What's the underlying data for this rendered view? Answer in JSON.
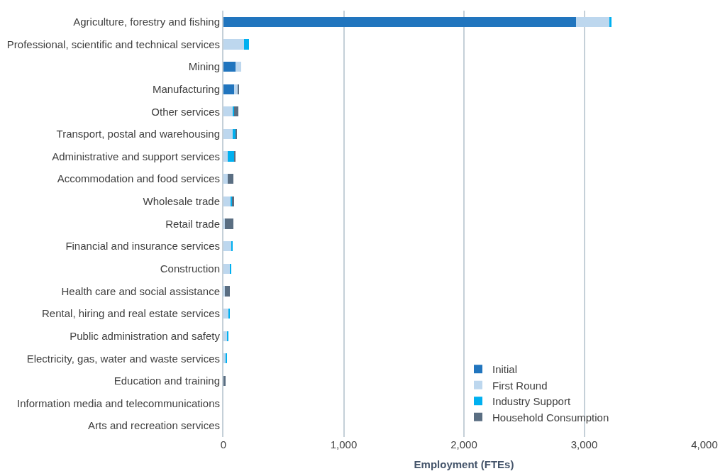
{
  "chart_data": {
    "type": "bar",
    "orientation": "horizontal",
    "stacked": true,
    "xlabel": "Employment (FTEs)",
    "categories": [
      "Agriculture, forestry and fishing",
      "Professional, scientific and technical services",
      "Mining",
      "Manufacturing",
      "Other services",
      "Transport, postal and warehousing",
      "Administrative and support services",
      "Accommodation and food services",
      "Wholesale trade",
      "Retail trade",
      "Financial and insurance services",
      "Construction",
      "Health care and social assistance",
      "Rental, hiring and real estate services",
      "Public administration and safety",
      "Electricity, gas, water and waste services",
      "Education and training",
      "Information media and telecommunications",
      "Arts and recreation services"
    ],
    "series": [
      {
        "name": "Initial",
        "color": "#2175be",
        "values": [
          2935,
          0,
          99,
          87,
          0,
          0,
          0,
          0,
          0,
          0,
          0,
          0,
          0,
          0,
          0,
          0,
          0,
          0,
          0
        ]
      },
      {
        "name": "First Round",
        "color": "#bdd7ee",
        "values": [
          280,
          173,
          47,
          30,
          74,
          74,
          37,
          37,
          64,
          12,
          64,
          52,
          10,
          42,
          27,
          22,
          null,
          null,
          null
        ]
      },
      {
        "name": "Industry Support",
        "color": "#00b0f0",
        "values": [
          10,
          37,
          0,
          0,
          12,
          27,
          52,
          null,
          7,
          0,
          12,
          12,
          0,
          7,
          17,
          10,
          0,
          0,
          0
        ]
      },
      {
        "name": "Household Consumption",
        "color": "#5a6e82",
        "values": [
          0,
          0,
          0,
          15,
          40,
          12,
          7,
          47,
          15,
          69,
          0,
          0,
          45,
          0,
          0,
          0,
          17,
          0,
          0
        ]
      }
    ],
    "xlim": [
      0,
      4000
    ],
    "xticks": [
      {
        "value": 0,
        "label": "0"
      },
      {
        "value": 1000,
        "label": "1,000"
      },
      {
        "value": 2000,
        "label": "2,000"
      },
      {
        "value": 3000,
        "label": "3,000"
      },
      {
        "value": 4000,
        "label": "4,000"
      }
    ],
    "grid": "x",
    "legend": "bottom right"
  }
}
